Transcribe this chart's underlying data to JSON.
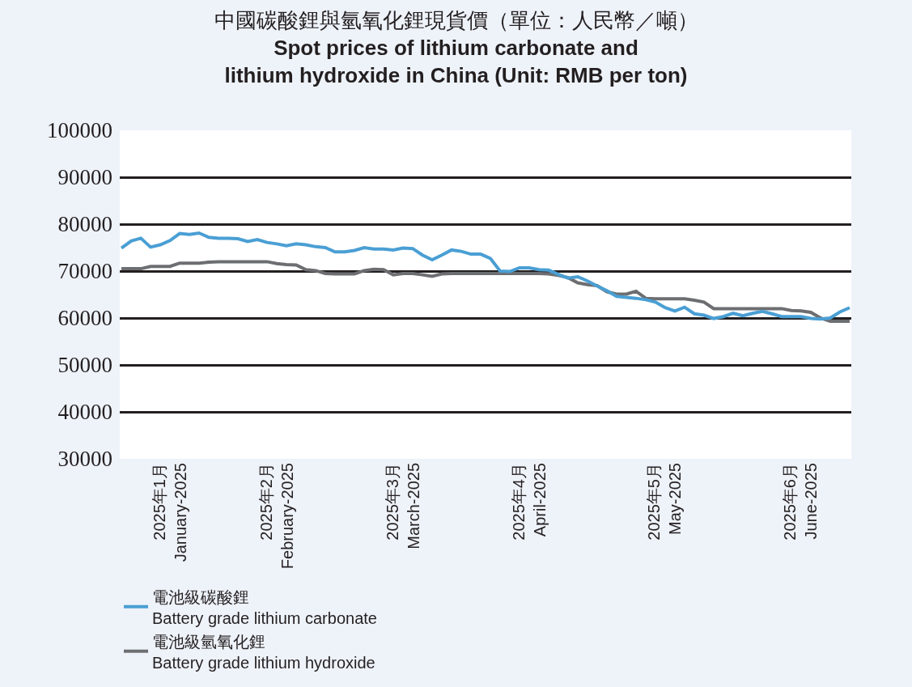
{
  "chart_data": {
    "type": "line",
    "title": "中國碳酸鋰與氫氧化鋰現貨價（單位：人民幣／噸）\nSpot prices of lithium carbonate and\nlithium hydroxide in China (Unit: RMB per ton)",
    "categories": [
      null,
      null,
      null,
      null,
      null,
      "2025年1月\nJanuary-2025",
      null,
      null,
      null,
      null,
      null,
      null,
      null,
      null,
      null,
      null,
      "2025年2月\nFebruary-2025",
      null,
      null,
      null,
      null,
      null,
      null,
      null,
      null,
      null,
      null,
      null,
      null,
      "2025年3月\nMarch-2025",
      null,
      null,
      null,
      null,
      null,
      null,
      null,
      null,
      null,
      null,
      null,
      null,
      "2025年4月\nApril-2025",
      null,
      null,
      null,
      null,
      null,
      null,
      null,
      null,
      null,
      null,
      null,
      null,
      null,
      "2025年5月\nMay-2025",
      null,
      null,
      null,
      null,
      null,
      null,
      null,
      null,
      null,
      null,
      null,
      null,
      null,
      "2025年6月\nJune-2025",
      null,
      null,
      null,
      null,
      null
    ],
    "series": [
      {
        "name": "電池級碳酸鋰\nBattery grade lithium carbonate",
        "color": "#4a9fd4",
        "values": [
          74900,
          76400,
          77000,
          75100,
          75600,
          76500,
          78000,
          77800,
          78100,
          77200,
          77000,
          77000,
          76900,
          76300,
          76700,
          76100,
          75800,
          75400,
          75800,
          75600,
          75200,
          75000,
          74100,
          74100,
          74400,
          75000,
          74700,
          74700,
          74500,
          74900,
          74800,
          73400,
          72400,
          73400,
          74500,
          74200,
          73600,
          73600,
          72700,
          70000,
          69900,
          70700,
          70700,
          70300,
          70200,
          69300,
          68500,
          68800,
          67900,
          66800,
          65800,
          64600,
          64400,
          64200,
          63900,
          63400,
          62200,
          61500,
          62300,
          60900,
          60600,
          59900,
          60300,
          61000,
          60500,
          61000,
          61400,
          60900,
          60300,
          60300,
          60300,
          59900,
          59800,
          60000,
          61300,
          62200
        ]
      },
      {
        "name": "電池級氫氧化鋰\nBattery grade lithium hydroxide",
        "color": "#6d6e71",
        "values": [
          70500,
          70500,
          70500,
          71000,
          71000,
          71000,
          71700,
          71700,
          71700,
          71900,
          72000,
          72000,
          72000,
          72000,
          72000,
          72000,
          71600,
          71400,
          71300,
          70300,
          70100,
          69500,
          69400,
          69400,
          69400,
          70100,
          70400,
          70300,
          69200,
          69500,
          69500,
          69200,
          68900,
          69400,
          69500,
          69500,
          69500,
          69500,
          69500,
          69500,
          69500,
          69500,
          69500,
          69500,
          69400,
          69100,
          68600,
          67500,
          67100,
          66900,
          65600,
          65100,
          65100,
          65700,
          64200,
          64100,
          64100,
          64100,
          64100,
          63800,
          63400,
          62000,
          62000,
          62000,
          62000,
          62000,
          62000,
          62000,
          62000,
          61600,
          61500,
          61200,
          60000,
          59300,
          59300,
          59300
        ]
      }
    ],
    "ylim": [
      30000,
      100000
    ],
    "yticks": [
      30000,
      40000,
      50000,
      60000,
      70000,
      80000,
      90000,
      100000
    ],
    "grid": "y",
    "legend": "bottom",
    "marker": "none",
    "line_style": "solid"
  }
}
